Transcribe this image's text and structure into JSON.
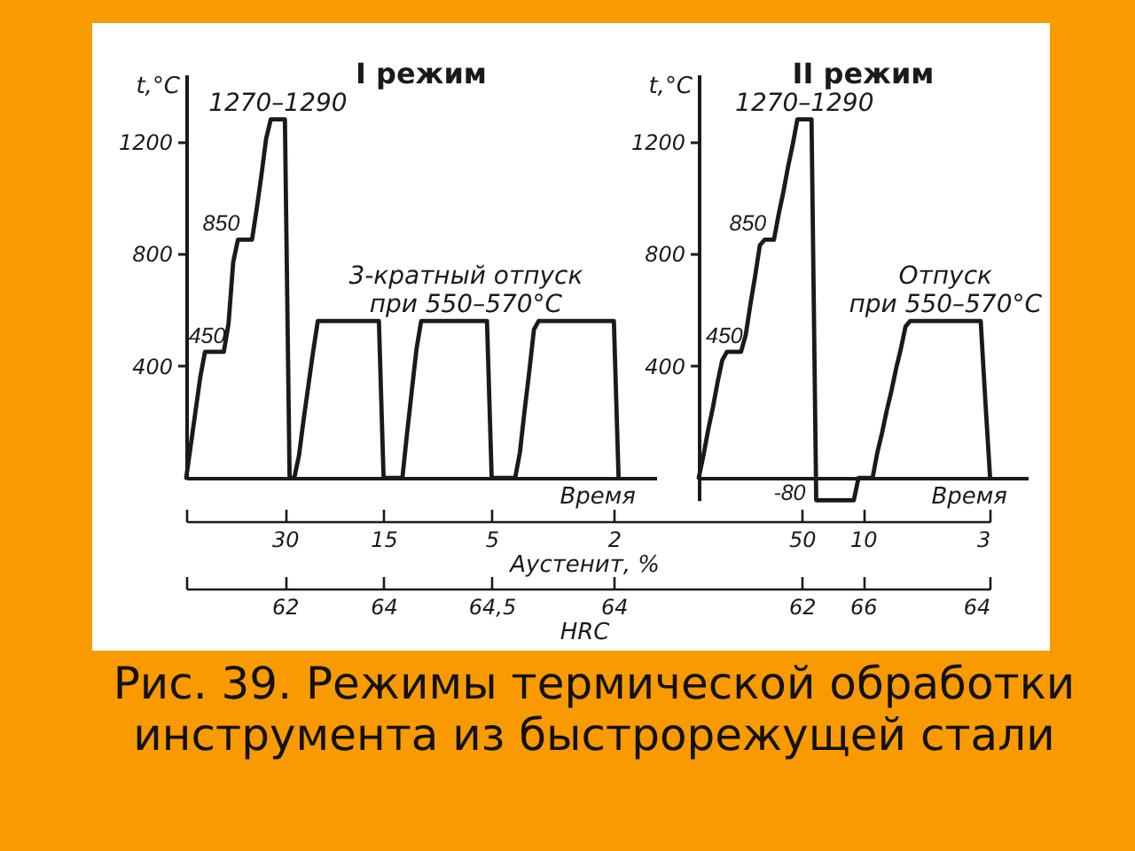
{
  "chart_data": [
    {
      "type": "line",
      "title": "I режим",
      "xlabel": "Время",
      "ylabel": "t,°C",
      "categories": [
        null,
        null,
        null,
        null,
        null,
        null,
        null,
        null,
        null,
        null,
        null,
        null,
        null,
        null,
        null,
        null,
        null,
        null,
        null,
        null,
        null,
        null,
        null,
        null,
        null,
        null,
        null,
        null,
        null,
        null,
        null,
        null,
        null,
        null,
        null,
        null,
        null,
        null,
        null,
        null,
        null,
        null,
        null,
        null,
        null,
        null,
        null,
        null,
        null,
        null,
        null,
        null,
        null,
        null,
        null,
        null,
        null,
        null,
        null,
        null,
        null,
        null,
        null,
        null,
        null,
        null,
        null,
        null,
        null,
        null,
        null,
        null,
        null,
        null,
        null,
        null,
        null,
        null,
        null,
        null,
        null,
        null,
        null,
        null,
        null,
        null,
        null,
        null,
        null,
        null,
        null,
        null,
        null,
        null,
        null,
        null,
        null,
        null,
        null,
        null,
        null
      ],
      "series": [
        {
          "color": "#1a1a1a",
          "values": [
            0,
            120,
            240,
            360,
            450,
            450,
            450,
            450,
            450,
            550,
            770,
            850,
            850,
            850,
            850,
            960,
            1080,
            1210,
            1280,
            1280,
            1280,
            1280,
            0,
            0,
            80,
            210,
            330,
            450,
            560,
            560,
            560,
            560,
            560,
            560,
            560,
            560,
            560,
            560,
            560,
            560,
            560,
            560,
            0,
            0,
            0,
            0,
            0,
            160,
            310,
            460,
            560,
            560,
            560,
            560,
            560,
            560,
            560,
            560,
            560,
            560,
            560,
            560,
            560,
            560,
            560,
            0,
            0,
            0,
            0,
            0,
            0,
            90,
            240,
            380,
            530,
            560,
            560,
            560,
            560,
            560,
            560,
            560,
            560,
            560,
            560,
            560,
            560,
            560,
            560,
            560,
            560,
            560,
            0,
            null,
            null,
            null,
            null,
            null,
            null,
            null,
            null
          ],
          "value_labels": [
            null,
            null,
            null,
            null,
            null,
            null,
            null,
            null,
            "450",
            null,
            null,
            "850",
            null,
            null,
            null,
            null,
            null,
            null,
            null,
            null,
            null,
            null,
            null,
            null,
            null,
            null,
            null,
            null,
            null,
            null,
            null,
            null,
            null,
            null,
            null,
            null,
            null,
            null,
            null,
            null,
            null,
            null,
            null,
            null,
            null,
            null,
            null,
            null,
            null,
            null,
            null,
            null,
            null,
            null,
            null,
            null,
            null,
            null,
            null,
            null,
            null,
            null,
            null,
            null,
            null,
            null,
            null,
            null,
            null,
            null,
            null,
            null,
            null,
            null,
            null,
            null,
            null,
            null,
            null,
            null,
            null,
            null,
            null,
            null,
            null,
            null,
            null,
            null,
            null,
            null,
            null,
            null,
            null,
            null,
            null,
            null,
            null,
            null,
            null,
            null,
            null
          ]
        }
      ],
      "ylim": [
        0,
        1440
      ],
      "yticks": [
        400,
        800,
        1200
      ],
      "annotations": [
        {
          "text": "1270–1290",
          "y": 1280
        },
        {
          "text": "3-кратный отпуск\nпри 550–570°C",
          "y": 560
        },
        "Рис. 39. Режимы термической обработки инструмента из быстрорежущей стали"
      ]
    },
    {
      "type": "line",
      "title": "II режим",
      "xlabel": "Время",
      "ylabel": "t,°C",
      "categories": [
        null,
        null,
        null,
        null,
        null,
        null,
        null,
        null,
        null,
        null,
        null,
        null,
        null,
        null,
        null,
        null,
        null,
        null,
        null,
        null,
        null,
        null,
        null,
        null,
        null,
        null,
        null,
        null,
        null,
        null,
        null,
        null,
        null,
        null,
        null,
        null,
        null,
        null,
        null,
        null,
        null,
        null,
        null,
        null,
        null,
        null,
        null,
        null,
        null,
        null,
        null,
        null,
        null,
        null,
        null,
        null,
        null,
        null,
        null,
        null,
        null,
        null,
        null,
        null,
        null,
        null,
        null,
        null,
        null,
        null,
        null
      ],
      "series": [
        {
          "color": "#1a1a1a",
          "values": [
            0,
            80,
            170,
            250,
            340,
            420,
            450,
            450,
            450,
            450,
            510,
            620,
            720,
            830,
            850,
            850,
            850,
            940,
            1020,
            1110,
            1190,
            1280,
            1280,
            1280,
            1280,
            -80,
            -80,
            -80,
            -80,
            -80,
            -80,
            -80,
            -80,
            -80,
            0,
            0,
            0,
            0,
            90,
            160,
            240,
            310,
            390,
            460,
            540,
            560,
            560,
            560,
            560,
            560,
            560,
            560,
            560,
            560,
            560,
            560,
            560,
            560,
            560,
            560,
            560,
            270,
            0,
            null,
            null,
            null,
            null,
            null,
            null,
            null,
            null
          ],
          "value_labels": [
            null,
            null,
            null,
            null,
            null,
            null,
            null,
            null,
            null,
            "450",
            null,
            null,
            null,
            null,
            "850",
            null,
            null,
            null,
            null,
            null,
            null,
            null,
            null,
            null,
            null,
            "-80",
            null,
            null,
            null,
            null,
            null,
            null,
            null,
            null,
            null,
            null,
            null,
            null,
            null,
            null,
            null,
            null,
            null,
            null,
            null,
            null,
            null,
            null,
            null,
            null,
            null,
            null,
            null,
            null,
            null,
            null,
            null,
            null,
            null,
            null,
            null,
            null,
            null,
            null,
            null,
            null,
            null,
            null,
            null,
            null,
            null
          ]
        }
      ],
      "ylim": [
        -80,
        1440
      ],
      "yticks": [
        400,
        800,
        1200
      ],
      "annotations": [
        {
          "text": "1270–1290",
          "y": 1280
        },
        {
          "text": "Отпуск\nпри 550–570°C",
          "y": 560
        }
      ]
    },
    {
      "type": "other",
      "xlabel": "Аустенит, %",
      "categories": [
        null,
        null,
        null,
        null,
        null,
        null,
        null,
        null,
        null,
        null,
        null,
        null,
        null,
        null,
        null,
        null,
        null,
        null,
        null,
        null,
        null,
        "30",
        null,
        null,
        null,
        null,
        null,
        null,
        null,
        null,
        null,
        null,
        null,
        null,
        null,
        null,
        null,
        null,
        null,
        null,
        null,
        null,
        "15",
        null,
        null,
        null,
        null,
        null,
        null,
        null,
        null,
        null,
        null,
        null,
        null,
        null,
        null,
        null,
        null,
        null,
        null,
        null,
        null,
        null,
        null,
        "5",
        null,
        null,
        null,
        null,
        null,
        null,
        null,
        null,
        null,
        null,
        null,
        null,
        null,
        null,
        null,
        null,
        null,
        null,
        null,
        null,
        null,
        null,
        null,
        null,
        null,
        "2",
        null,
        null,
        null,
        null,
        null,
        null,
        null,
        null,
        null,
        null,
        null,
        null,
        null,
        null,
        null,
        null,
        null,
        null,
        null,
        null,
        null,
        null,
        null,
        null,
        null,
        null,
        null,
        null,
        null,
        null,
        null,
        null,
        null,
        null,
        null,
        null,
        null,
        null,
        null,
        "50",
        null,
        null,
        null,
        null,
        null,
        null,
        null,
        null,
        null,
        null,
        null,
        null,
        "10",
        null,
        null,
        null,
        null,
        null,
        null,
        null,
        null,
        null,
        null,
        null,
        null,
        null,
        null,
        null,
        null,
        null,
        null,
        null,
        null,
        null,
        null,
        null,
        null,
        null,
        null,
        "3"
      ]
    },
    {
      "type": "other",
      "xlabel": "HRC",
      "categories": [
        null,
        null,
        null,
        null,
        null,
        null,
        null,
        null,
        null,
        null,
        null,
        null,
        null,
        null,
        null,
        null,
        null,
        null,
        null,
        null,
        null,
        "62",
        null,
        null,
        null,
        null,
        null,
        null,
        null,
        null,
        null,
        null,
        null,
        null,
        null,
        null,
        null,
        null,
        null,
        null,
        null,
        null,
        "64",
        null,
        null,
        null,
        null,
        null,
        null,
        null,
        null,
        null,
        null,
        null,
        null,
        null,
        null,
        null,
        null,
        null,
        null,
        null,
        null,
        null,
        null,
        "64,5",
        null,
        null,
        null,
        null,
        null,
        null,
        null,
        null,
        null,
        null,
        null,
        null,
        null,
        null,
        null,
        null,
        null,
        null,
        null,
        null,
        null,
        null,
        null,
        null,
        null,
        "64",
        null,
        null,
        null,
        null,
        null,
        null,
        null,
        null,
        null,
        null,
        null,
        null,
        null,
        null,
        null,
        null,
        null,
        null,
        null,
        null,
        null,
        null,
        null,
        null,
        null,
        null,
        null,
        null,
        null,
        null,
        null,
        null,
        null,
        null,
        null,
        null,
        null,
        null,
        null,
        "62",
        null,
        null,
        null,
        null,
        null,
        null,
        null,
        null,
        null,
        null,
        null,
        null,
        "66",
        null,
        null,
        null,
        null,
        null,
        null,
        null,
        null,
        null,
        null,
        null,
        null,
        null,
        null,
        null,
        null,
        null,
        null,
        null,
        null,
        null,
        null,
        null,
        null,
        null,
        null,
        "64"
      ]
    }
  ]
}
